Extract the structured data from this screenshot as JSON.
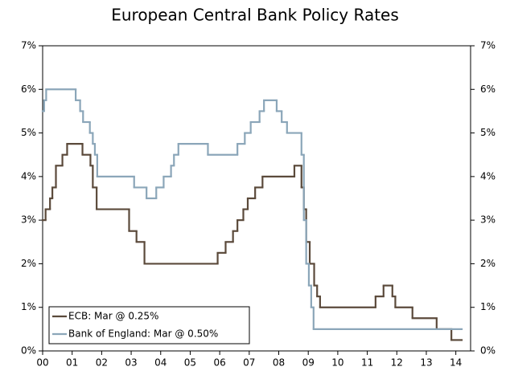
{
  "chart_data": {
    "type": "step-line",
    "title": "European Central Bank Policy Rates",
    "xlim": [
      0,
      14.5
    ],
    "xticks": [
      {
        "value": 0,
        "label": "00"
      },
      {
        "value": 1,
        "label": "01"
      },
      {
        "value": 2,
        "label": "02"
      },
      {
        "value": 3,
        "label": "03"
      },
      {
        "value": 4,
        "label": "04"
      },
      {
        "value": 5,
        "label": "05"
      },
      {
        "value": 6,
        "label": "06"
      },
      {
        "value": 7,
        "label": "07"
      },
      {
        "value": 8,
        "label": "08"
      },
      {
        "value": 9,
        "label": "09"
      },
      10,
      11,
      12,
      13,
      14
    ],
    "ylim": [
      0,
      7
    ],
    "yticks": [
      {
        "value": 0,
        "label": "0%"
      },
      {
        "value": 1,
        "label": "1%"
      },
      {
        "value": 2,
        "label": "2%"
      },
      {
        "value": 3,
        "label": "3%"
      },
      {
        "value": 4,
        "label": "4%"
      },
      {
        "value": 5,
        "label": "5%"
      },
      {
        "value": 6,
        "label": "6%"
      },
      {
        "value": 7,
        "label": "7%"
      }
    ],
    "y2lim": [
      0,
      7
    ],
    "y2ticks": [
      {
        "value": 0,
        "label": "0%"
      },
      {
        "value": 1,
        "label": "1%"
      },
      {
        "value": 2,
        "label": "2%"
      },
      {
        "value": 3,
        "label": "3%"
      },
      {
        "value": 4,
        "label": "4%"
      },
      {
        "value": 5,
        "label": "5%"
      },
      {
        "value": 6,
        "label": "6%"
      },
      {
        "value": 7,
        "label": "7%"
      }
    ],
    "legend": "lower left",
    "series": [
      {
        "name": "ECB: Mar @ 0.25%",
        "color": "#5b4a3b",
        "x": [
          0.0,
          0.1,
          0.25,
          0.33,
          0.45,
          0.67,
          0.83,
          1.35,
          1.62,
          1.7,
          1.83,
          2.93,
          3.18,
          3.45,
          5.93,
          6.2,
          6.45,
          6.6,
          6.8,
          6.95,
          7.2,
          7.45,
          8.53,
          8.77,
          8.85,
          8.93,
          9.05,
          9.2,
          9.3,
          9.4,
          11.28,
          11.55,
          11.85,
          11.95,
          12.53,
          13.35,
          13.85,
          14.2
        ],
        "values": [
          3.0,
          3.25,
          3.5,
          3.75,
          4.25,
          4.5,
          4.75,
          4.5,
          4.25,
          3.75,
          3.25,
          2.75,
          2.5,
          2.0,
          2.25,
          2.5,
          2.75,
          3.0,
          3.25,
          3.5,
          3.75,
          4.0,
          4.25,
          3.75,
          3.25,
          2.5,
          2.0,
          1.5,
          1.25,
          1.0,
          1.25,
          1.5,
          1.25,
          1.0,
          0.75,
          0.5,
          0.25,
          0.25
        ]
      },
      {
        "name": "Bank of England: Mar @ 0.50%",
        "color": "#8ba6b9",
        "x": [
          0.0,
          0.05,
          0.12,
          1.12,
          1.27,
          1.37,
          1.6,
          1.7,
          1.77,
          1.85,
          3.1,
          3.52,
          3.85,
          4.1,
          4.35,
          4.45,
          4.6,
          5.6,
          6.6,
          6.85,
          7.05,
          7.35,
          7.5,
          7.93,
          8.1,
          8.28,
          8.77,
          8.85,
          8.93,
          9.02,
          9.1,
          9.18,
          14.2
        ],
        "values": [
          5.5,
          5.75,
          6.0,
          5.75,
          5.5,
          5.25,
          5.0,
          4.75,
          4.5,
          4.0,
          3.75,
          3.5,
          3.75,
          4.0,
          4.25,
          4.5,
          4.75,
          4.5,
          4.75,
          5.0,
          5.25,
          5.5,
          5.75,
          5.5,
          5.25,
          5.0,
          4.5,
          3.0,
          2.0,
          1.5,
          1.0,
          0.5,
          0.5
        ]
      }
    ]
  }
}
